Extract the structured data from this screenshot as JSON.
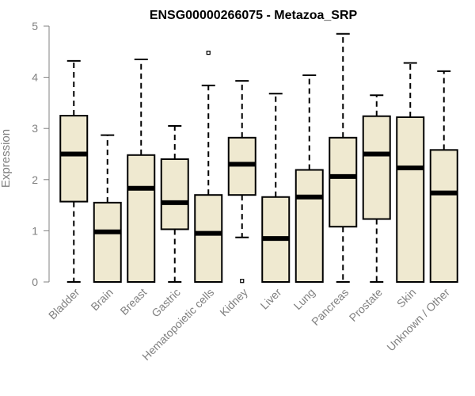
{
  "chart_data": {
    "type": "boxplot",
    "title": "ENSG00000266075 - Metazoa_SRP",
    "xlabel": "",
    "ylabel": "Expression",
    "ylim": [
      0,
      5
    ],
    "yticks": [
      0,
      1,
      2,
      3,
      4,
      5
    ],
    "categories": [
      "Bladder",
      "Brain",
      "Breast",
      "Gastric",
      "Hematopoietic cells",
      "Kidney",
      "Liver",
      "Lung",
      "Pancreas",
      "Prostate",
      "Skin",
      "Unknown / Other"
    ],
    "boxes": [
      {
        "category": "Bladder",
        "whisker_low": 0,
        "q1": 1.57,
        "median": 2.5,
        "q3": 3.25,
        "whisker_high": 4.32,
        "outliers": []
      },
      {
        "category": "Brain",
        "whisker_low": 0,
        "q1": 0,
        "median": 0.98,
        "q3": 1.55,
        "whisker_high": 2.87,
        "outliers": []
      },
      {
        "category": "Breast",
        "whisker_low": 0,
        "q1": 0,
        "median": 1.83,
        "q3": 2.48,
        "whisker_high": 4.35,
        "outliers": []
      },
      {
        "category": "Gastric",
        "whisker_low": 0,
        "q1": 1.03,
        "median": 1.55,
        "q3": 2.4,
        "whisker_high": 3.05,
        "outliers": []
      },
      {
        "category": "Hematopoietic cells",
        "whisker_low": 0,
        "q1": 0,
        "median": 0.95,
        "q3": 1.7,
        "whisker_high": 3.84,
        "outliers": [
          4.48
        ]
      },
      {
        "category": "Kidney",
        "whisker_low": 0.87,
        "q1": 1.7,
        "median": 2.3,
        "q3": 2.82,
        "whisker_high": 3.93,
        "outliers": [
          0.02
        ]
      },
      {
        "category": "Liver",
        "whisker_low": 0,
        "q1": 0,
        "median": 0.85,
        "q3": 1.66,
        "whisker_high": 3.68,
        "outliers": []
      },
      {
        "category": "Lung",
        "whisker_low": 0,
        "q1": 0,
        "median": 1.66,
        "q3": 2.19,
        "whisker_high": 4.04,
        "outliers": []
      },
      {
        "category": "Pancreas",
        "whisker_low": 0,
        "q1": 1.08,
        "median": 2.06,
        "q3": 2.82,
        "whisker_high": 4.85,
        "outliers": []
      },
      {
        "category": "Prostate",
        "whisker_low": 0,
        "q1": 1.23,
        "median": 2.5,
        "q3": 3.24,
        "whisker_high": 3.65,
        "outliers": []
      },
      {
        "category": "Skin",
        "whisker_low": 0,
        "q1": 0,
        "median": 2.23,
        "q3": 3.22,
        "whisker_high": 4.28,
        "outliers": []
      },
      {
        "category": "Unknown / Other",
        "whisker_low": 0,
        "q1": 0,
        "median": 1.74,
        "q3": 2.58,
        "whisker_high": 4.12,
        "outliers": []
      }
    ],
    "colors": {
      "box_fill": "#efe9d0",
      "box_stroke": "#000000",
      "median": "#000000",
      "axis": "#808080",
      "tick_text": "#808080",
      "title": "#000000"
    }
  }
}
